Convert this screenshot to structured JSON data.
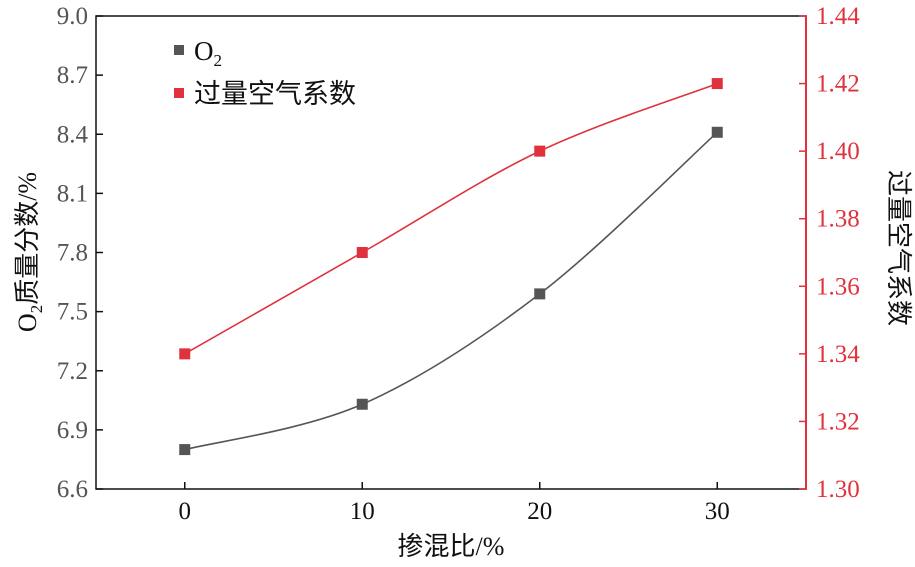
{
  "chart_data": {
    "type": "line",
    "x": [
      0,
      10,
      20,
      30
    ],
    "xlim": [
      -5,
      35
    ],
    "x_ticks": [
      "0",
      "10",
      "20",
      "30"
    ],
    "xlabel": "掺混比/%",
    "series": [
      {
        "name": "O",
        "name_sub": "2",
        "axis": "left",
        "color": "#555555",
        "values": [
          6.8,
          7.03,
          7.59,
          8.41
        ]
      },
      {
        "name": "过量空气系数",
        "axis": "right",
        "color": "#e0323c",
        "values": [
          1.34,
          1.37,
          1.4,
          1.42
        ]
      }
    ],
    "y_left": {
      "label": "O",
      "label_sub": "2",
      "label_rest": "质量分数/%",
      "ylim": [
        6.6,
        9.0
      ],
      "ticks": [
        "6.6",
        "6.9",
        "7.2",
        "7.5",
        "7.8",
        "8.1",
        "8.4",
        "8.7",
        "9.0"
      ],
      "color": "#555555"
    },
    "y_right": {
      "label": "过量空气系数",
      "ylim": [
        1.3,
        1.44
      ],
      "ticks": [
        "1.30",
        "1.32",
        "1.34",
        "1.36",
        "1.38",
        "1.40",
        "1.42",
        "1.44"
      ],
      "color": "#e0323c"
    },
    "legend_position": "top-left",
    "grid": false
  }
}
